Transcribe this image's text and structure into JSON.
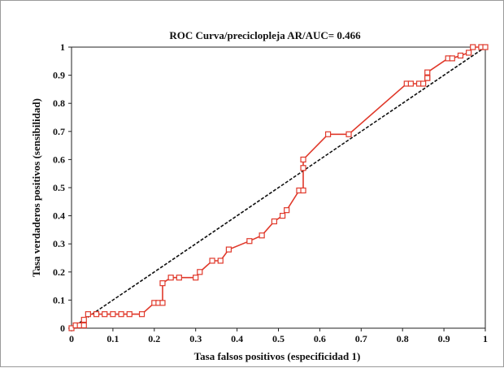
{
  "chart_data": {
    "type": "line",
    "title": "ROC Curva/preciclopleja AR/AUC= 0.466",
    "xlabel": "Tasa falsos positivos (especificidad 1)",
    "ylabel": "Tasa verdaderos positivos (sensibilidad)",
    "xlim": [
      0,
      1
    ],
    "ylim": [
      0,
      1
    ],
    "xticks": [
      "0",
      "0.1",
      "0.2",
      "0.3",
      "0.4",
      "0.5",
      "0.6",
      "0.7",
      "0.8",
      "0.9",
      "1"
    ],
    "yticks": [
      "0",
      "0.1",
      "0.2",
      "0.3",
      "0.4",
      "0.5",
      "0.6",
      "0.7",
      "0.8",
      "0.9",
      "1"
    ],
    "grid": false,
    "colors": {
      "curve": "#e0392b",
      "diagonal": "#111111",
      "axes": "#222222"
    },
    "series": [
      {
        "style": "solid-square-markers",
        "x": [
          0,
          0.01,
          0.02,
          0.03,
          0.03,
          0.04,
          0.06,
          0.08,
          0.1,
          0.12,
          0.14,
          0.17,
          0.2,
          0.21,
          0.22,
          0.22,
          0.24,
          0.26,
          0.3,
          0.31,
          0.34,
          0.36,
          0.38,
          0.43,
          0.46,
          0.49,
          0.51,
          0.52,
          0.55,
          0.56,
          0.56,
          0.56,
          0.62,
          0.67,
          0.81,
          0.82,
          0.84,
          0.85,
          0.86,
          0.86,
          0.86,
          0.91,
          0.92,
          0.94,
          0.96,
          0.97,
          0.99,
          1
        ],
        "y": [
          0,
          0.01,
          0.01,
          0.01,
          0.03,
          0.05,
          0.05,
          0.05,
          0.05,
          0.05,
          0.05,
          0.05,
          0.09,
          0.09,
          0.09,
          0.16,
          0.18,
          0.18,
          0.18,
          0.2,
          0.24,
          0.24,
          0.28,
          0.31,
          0.33,
          0.38,
          0.4,
          0.42,
          0.49,
          0.49,
          0.57,
          0.6,
          0.69,
          0.69,
          0.87,
          0.87,
          0.87,
          0.87,
          0.89,
          0.89,
          0.91,
          0.96,
          0.96,
          0.97,
          0.98,
          1.0,
          1.0,
          1.0
        ]
      },
      {
        "style": "dashed-diagonal",
        "x": [
          0,
          1
        ],
        "y": [
          0,
          1
        ]
      }
    ]
  }
}
